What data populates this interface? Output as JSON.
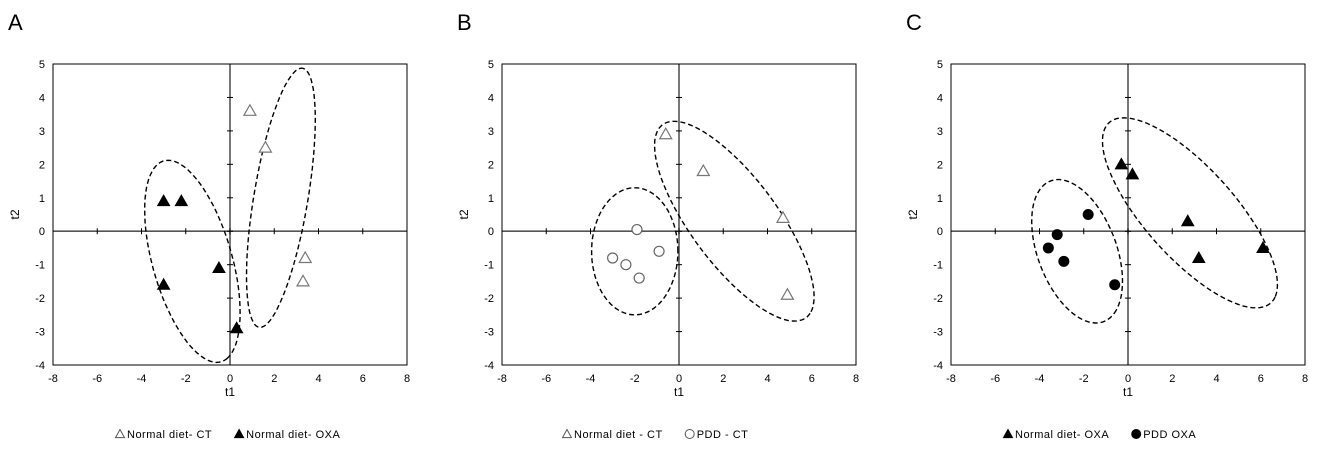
{
  "chart_data": [
    {
      "panel": "A",
      "type": "scatter",
      "xlabel": "t1",
      "ylabel": "t2",
      "xlim": [
        -8,
        8
      ],
      "ylim": [
        -4,
        5
      ],
      "xticks": [
        "-8",
        "-6",
        "-4",
        "-2",
        "0",
        "2",
        "4",
        "6",
        "8"
      ],
      "yticks": [
        "-4",
        "-3",
        "-2",
        "-1",
        "0",
        "1",
        "2",
        "3",
        "4",
        "5"
      ],
      "series": [
        {
          "name": "Normal diet - CT",
          "label": "Normal diet- CT",
          "marker": "triangle",
          "filled": false,
          "points": [
            [
              0.9,
              3.6
            ],
            [
              1.6,
              2.5
            ],
            [
              3.4,
              -0.8
            ],
            [
              3.3,
              -1.5
            ]
          ]
        },
        {
          "name": "Normal diet - OXA",
          "label": "Normal diet- OXA",
          "marker": "triangle",
          "filled": true,
          "points": [
            [
              -3.0,
              0.9
            ],
            [
              -2.2,
              0.9
            ],
            [
              -0.5,
              -1.1
            ],
            [
              -3.0,
              -1.6
            ],
            [
              0.3,
              -2.9
            ]
          ]
        }
      ],
      "ellipses": [
        {
          "cx": 2.3,
          "cy": 1.0,
          "rx": 4.0,
          "ry": 1.2,
          "angle_deg": 75
        },
        {
          "cx": -1.7,
          "cy": -0.9,
          "rx": 3.3,
          "ry": 1.7,
          "angle_deg": -62
        }
      ]
    },
    {
      "panel": "B",
      "type": "scatter",
      "xlabel": "t1",
      "ylabel": "t2",
      "xlim": [
        -8,
        8
      ],
      "ylim": [
        -4,
        5
      ],
      "xticks": [
        "-8",
        "-6",
        "-4",
        "-2",
        "0",
        "2",
        "4",
        "6",
        "8"
      ],
      "yticks": [
        "-4",
        "-3",
        "-2",
        "-1",
        "0",
        "1",
        "2",
        "3",
        "4",
        "5"
      ],
      "series": [
        {
          "name": "Normal diet - CT",
          "label": "Normal diet - CT",
          "marker": "triangle",
          "filled": false,
          "points": [
            [
              -0.6,
              2.9
            ],
            [
              1.1,
              1.8
            ],
            [
              4.7,
              0.4
            ],
            [
              4.9,
              -1.9
            ]
          ]
        },
        {
          "name": "PDD - CT",
          "label": "PDD - CT",
          "marker": "circle",
          "filled": false,
          "points": [
            [
              -1.9,
              0.05
            ],
            [
              -3.0,
              -0.8
            ],
            [
              -2.4,
              -1.0
            ],
            [
              -1.8,
              -1.4
            ],
            [
              -0.9,
              -0.6
            ]
          ]
        }
      ],
      "ellipses": [
        {
          "cx": 2.5,
          "cy": 0.3,
          "rx": 4.4,
          "ry": 1.6,
          "angle_deg": -38
        },
        {
          "cx": -2.0,
          "cy": -0.6,
          "rx": 1.95,
          "ry": 1.9,
          "angle_deg": 0
        }
      ]
    },
    {
      "panel": "C",
      "type": "scatter",
      "xlabel": "t1",
      "ylabel": "t2",
      "xlim": [
        -8,
        8
      ],
      "ylim": [
        -4,
        5
      ],
      "xticks": [
        "-8",
        "-6",
        "-4",
        "-2",
        "0",
        "2",
        "4",
        "6",
        "8"
      ],
      "yticks": [
        "-4",
        "-3",
        "-2",
        "-1",
        "0",
        "1",
        "2",
        "3",
        "4",
        "5"
      ],
      "series": [
        {
          "name": "Normal diet - OXA",
          "label": "Normal diet- OXA",
          "marker": "triangle",
          "filled": true,
          "points": [
            [
              -0.3,
              2.0
            ],
            [
              0.2,
              1.7
            ],
            [
              2.7,
              0.3
            ],
            [
              3.2,
              -0.8
            ],
            [
              6.1,
              -0.5
            ]
          ]
        },
        {
          "name": "PDD OXA",
          "label": "PDD OXA",
          "marker": "circle",
          "filled": true,
          "points": [
            [
              -1.8,
              0.5
            ],
            [
              -3.2,
              -0.1
            ],
            [
              -3.6,
              -0.5
            ],
            [
              -2.9,
              -0.9
            ],
            [
              -0.6,
              -1.6
            ]
          ]
        }
      ],
      "ellipses": [
        {
          "cx": 2.8,
          "cy": 0.55,
          "rx": 4.6,
          "ry": 1.6,
          "angle_deg": -33
        },
        {
          "cx": -2.3,
          "cy": -0.6,
          "rx": 2.5,
          "ry": 1.6,
          "angle_deg": -48
        }
      ]
    }
  ]
}
